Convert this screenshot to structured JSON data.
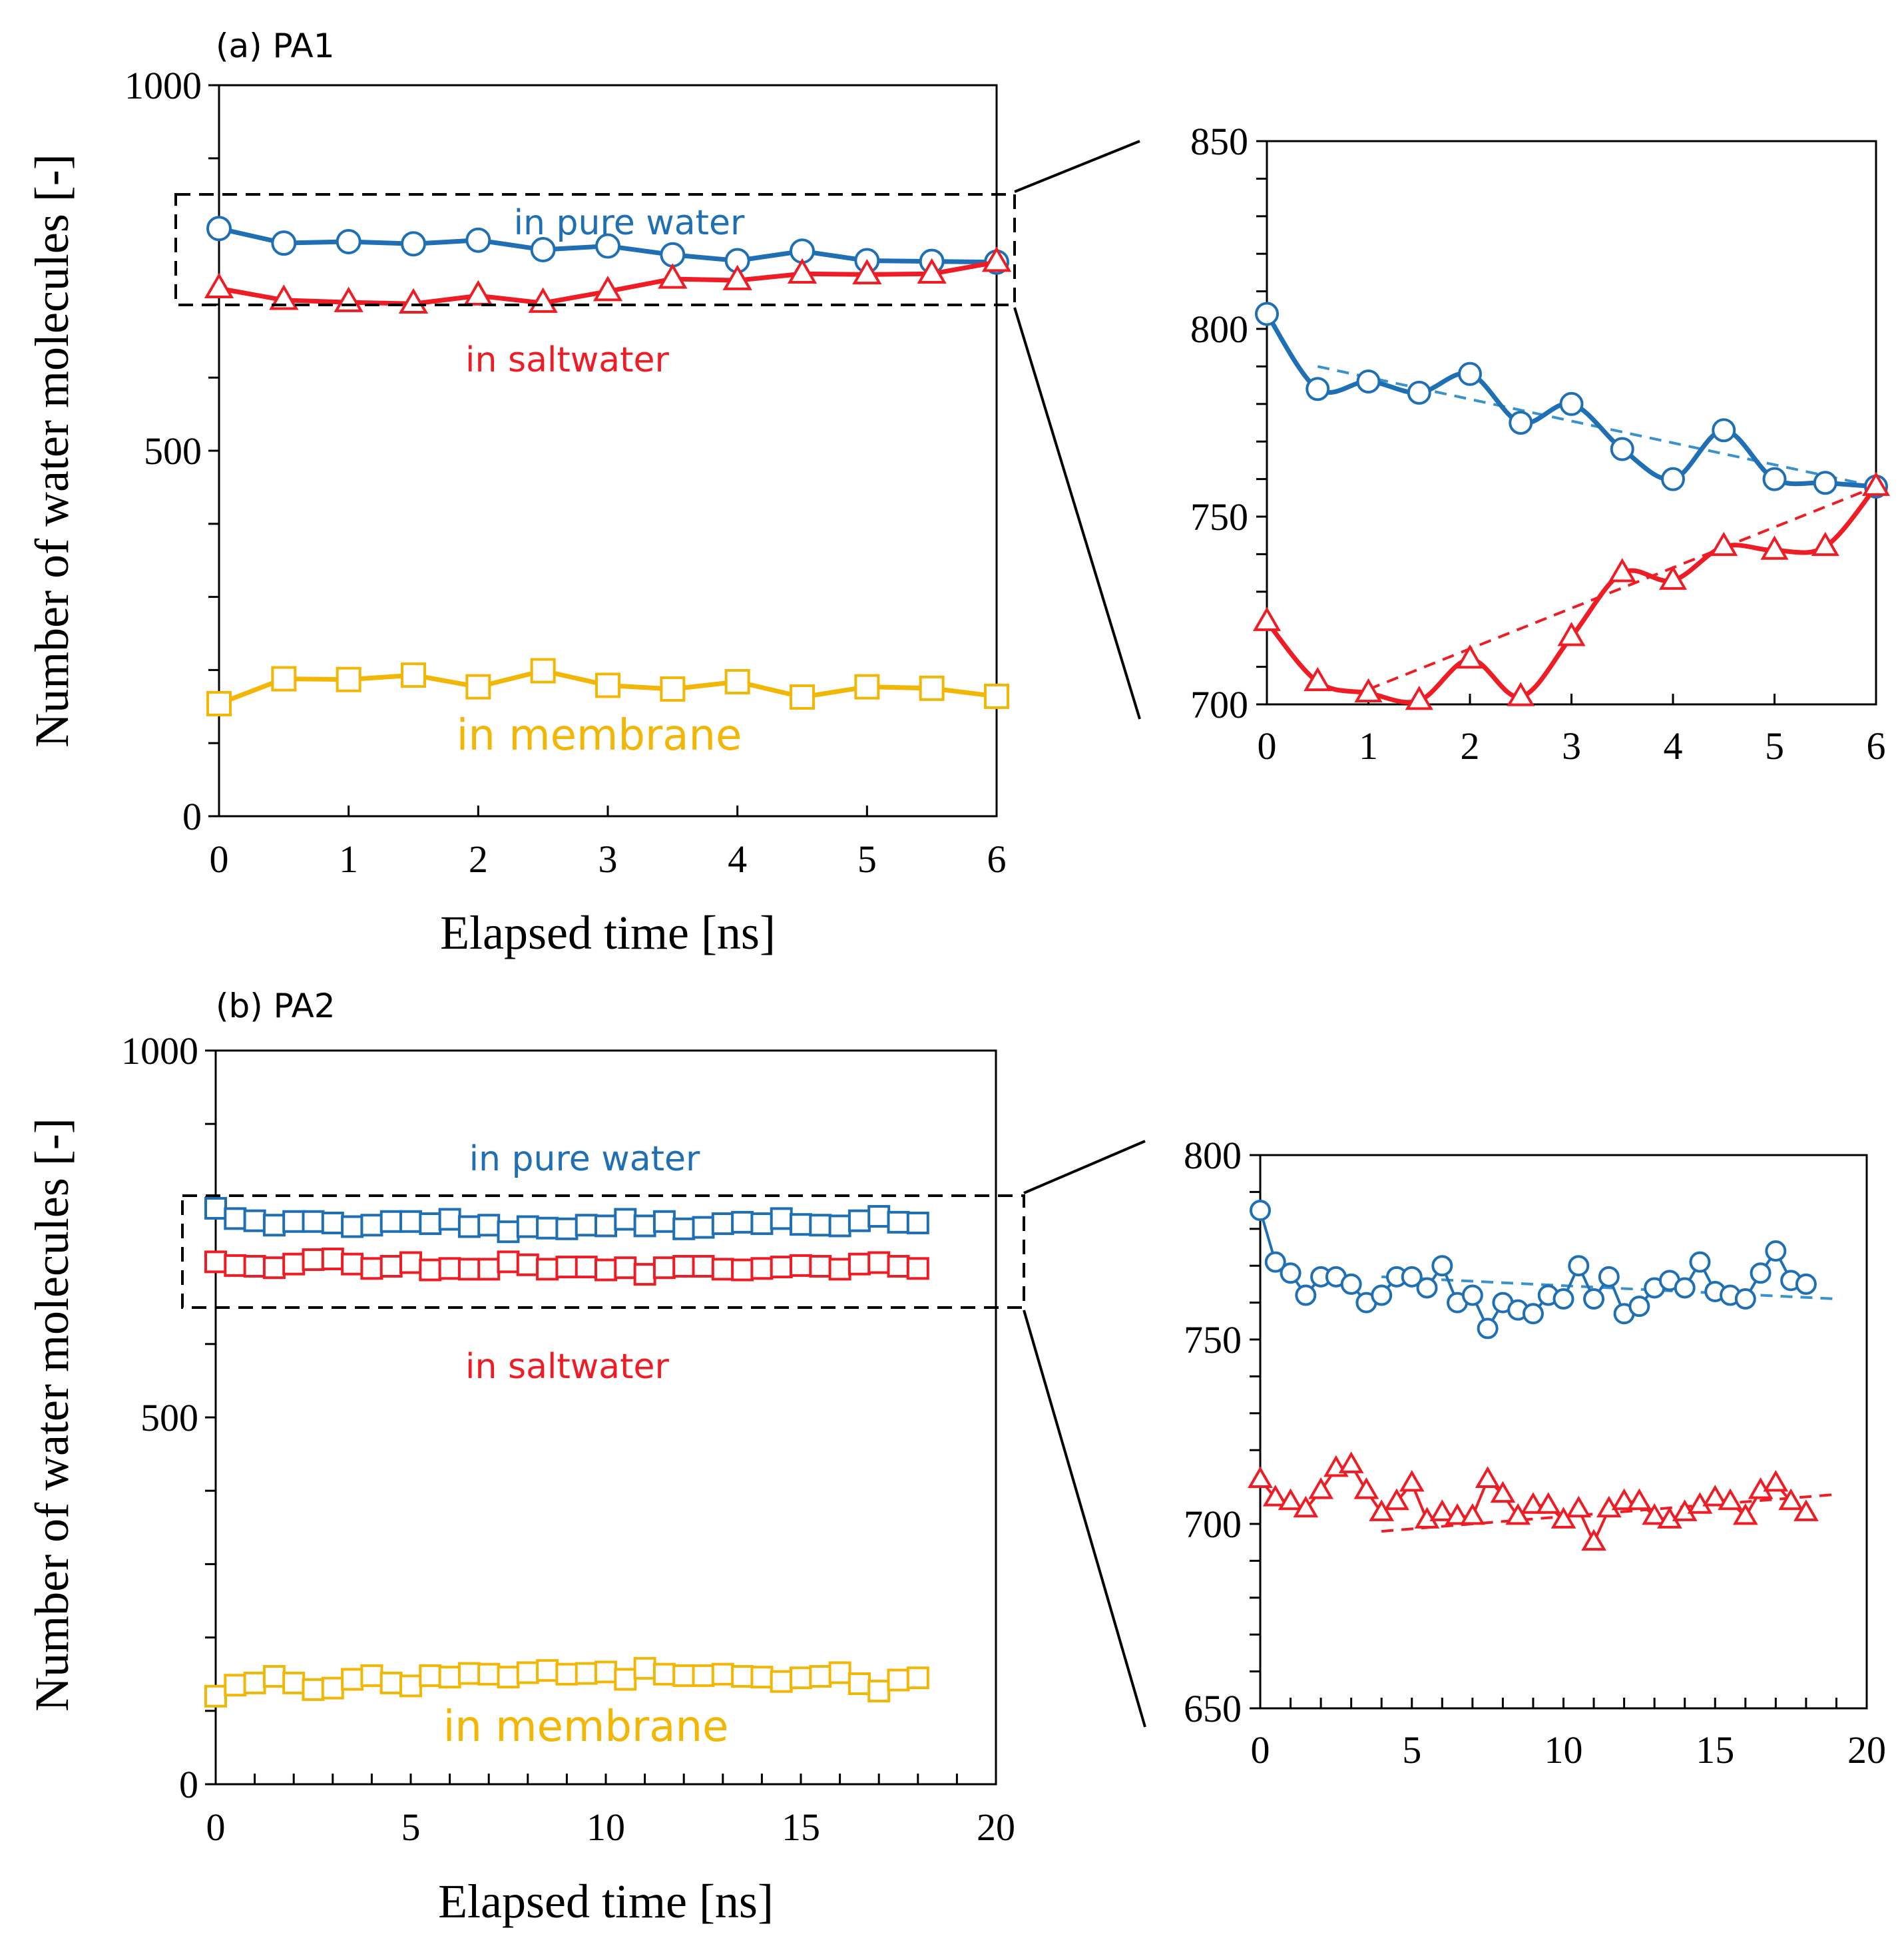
{
  "colors": {
    "pure_water": "#1f6fb4",
    "pure_water_trend": "#3a92cc",
    "saltwater": "#ee1c24",
    "membrane": "#f2b705",
    "axis": "#000000"
  },
  "chart_data": [
    {
      "id": "a_main",
      "type": "line",
      "panel_label": "(a) PA1",
      "xlabel": "Elapsed time [ns]",
      "ylabel": "Number of water molecules [-]",
      "xlim": [
        0,
        6
      ],
      "ylim": [
        0,
        1000
      ],
      "xticks": [
        0,
        1,
        2,
        3,
        4,
        5,
        6
      ],
      "yticks": [
        0,
        500,
        1000
      ],
      "annotations": {
        "pure": "in pure water",
        "salt": "in saltwater",
        "membrane": "in membrane"
      },
      "series": [
        {
          "name": "in pure water",
          "marker": "circle",
          "x": [
            0,
            0.5,
            1,
            1.5,
            2,
            2.5,
            3,
            3.5,
            4,
            4.5,
            5,
            5.5,
            6
          ],
          "values": [
            804,
            784,
            786,
            783,
            788,
            775,
            780,
            768,
            760,
            773,
            760,
            759,
            758
          ]
        },
        {
          "name": "in saltwater",
          "marker": "triangle",
          "x": [
            0,
            0.5,
            1,
            1.5,
            2,
            2.5,
            3,
            3.5,
            4,
            4.5,
            5,
            5.5,
            6
          ],
          "values": [
            722,
            706,
            703,
            701,
            712,
            702,
            718,
            735,
            733,
            742,
            741,
            742,
            758
          ]
        },
        {
          "name": "in membrane",
          "marker": "square",
          "x": [
            0,
            0.5,
            1,
            1.5,
            2,
            2.5,
            3,
            3.5,
            4,
            4.5,
            5,
            5.5,
            6
          ],
          "values": [
            154,
            188,
            187,
            193,
            177,
            199,
            179,
            174,
            184,
            163,
            177,
            175,
            164
          ]
        }
      ]
    },
    {
      "id": "a_zoom",
      "type": "line",
      "xlim": [
        0,
        6
      ],
      "ylim": [
        700,
        850
      ],
      "xticks": [
        0,
        1,
        2,
        3,
        4,
        5,
        6
      ],
      "yticks": [
        700,
        750,
        800,
        850
      ],
      "series": [
        {
          "name": "in pure water",
          "marker": "circle",
          "x": [
            0,
            0.5,
            1,
            1.5,
            2,
            2.5,
            3,
            3.5,
            4,
            4.5,
            5,
            5.5,
            6
          ],
          "values": [
            804,
            784,
            786,
            783,
            788,
            775,
            780,
            768,
            760,
            773,
            760,
            759,
            758
          ]
        },
        {
          "name": "in saltwater",
          "marker": "triangle",
          "x": [
            0,
            0.5,
            1,
            1.5,
            2,
            2.5,
            3,
            3.5,
            4,
            4.5,
            5,
            5.5,
            6
          ],
          "values": [
            722,
            706,
            703,
            701,
            712,
            702,
            718,
            735,
            733,
            742,
            741,
            742,
            758
          ]
        }
      ],
      "trendlines": [
        {
          "series": "in pure water",
          "x": [
            0.5,
            6
          ],
          "values": [
            790,
            758
          ]
        },
        {
          "series": "in saltwater",
          "x": [
            1,
            6
          ],
          "values": [
            704,
            758
          ]
        }
      ]
    },
    {
      "id": "b_main",
      "type": "line",
      "panel_label": "(b) PA2",
      "xlabel": "Elapsed time [ns]",
      "ylabel": "Number of water molecules [-]",
      "xlim": [
        0,
        20
      ],
      "ylim": [
        0,
        1000
      ],
      "xticks": [
        0,
        5,
        10,
        15,
        20
      ],
      "yticks": [
        0,
        500,
        1000
      ],
      "annotations": {
        "pure": "in pure water",
        "salt": "in saltwater",
        "membrane": "in membrane"
      },
      "series": [
        {
          "name": "in pure water",
          "marker": "square",
          "x": [
            0,
            0.5,
            1,
            1.5,
            2,
            2.5,
            3,
            3.5,
            4,
            4.5,
            5,
            5.5,
            6,
            6.5,
            7,
            7.5,
            8,
            8.5,
            9,
            9.5,
            10,
            10.5,
            11,
            11.5,
            12,
            12.5,
            13,
            13.5,
            14,
            14.5,
            15,
            15.5,
            16,
            16.5,
            17,
            17.5,
            18
          ],
          "values": [
            785,
            771,
            768,
            762,
            767,
            767,
            765,
            760,
            762,
            767,
            767,
            764,
            770,
            760,
            762,
            753,
            760,
            758,
            757,
            762,
            761,
            770,
            761,
            767,
            757,
            759,
            764,
            766,
            764,
            771,
            763,
            762,
            761,
            768,
            774,
            766,
            765
          ]
        },
        {
          "name": "in saltwater",
          "marker": "square",
          "x": [
            0,
            0.5,
            1,
            1.5,
            2,
            2.5,
            3,
            3.5,
            4,
            4.5,
            5,
            5.5,
            6,
            6.5,
            7,
            7.5,
            8,
            8.5,
            9,
            9.5,
            10,
            10.5,
            11,
            11.5,
            12,
            12.5,
            13,
            13.5,
            14,
            14.5,
            15,
            15.5,
            16,
            16.5,
            17,
            17.5,
            18
          ],
          "values": [
            712,
            707,
            706,
            704,
            709,
            715,
            716,
            709,
            703,
            706,
            711,
            701,
            703,
            702,
            702,
            712,
            708,
            702,
            705,
            705,
            701,
            704,
            695,
            704,
            706,
            706,
            702,
            701,
            703,
            705,
            707,
            706,
            702,
            709,
            711,
            706,
            703
          ]
        },
        {
          "name": "in membrane",
          "marker": "square",
          "x": [
            0,
            0.5,
            1,
            1.5,
            2,
            2.5,
            3,
            3.5,
            4,
            4.5,
            5,
            5.5,
            6,
            6.5,
            7,
            7.5,
            8,
            8.5,
            9,
            9.5,
            10,
            10.5,
            11,
            11.5,
            12,
            12.5,
            13,
            13.5,
            14,
            14.5,
            15,
            15.5,
            16,
            16.5,
            17,
            17.5,
            18
          ],
          "values": [
            120,
            135,
            138,
            147,
            138,
            129,
            131,
            143,
            148,
            138,
            134,
            148,
            146,
            151,
            150,
            146,
            152,
            155,
            150,
            151,
            153,
            143,
            158,
            150,
            148,
            148,
            150,
            147,
            146,
            140,
            145,
            147,
            152,
            137,
            127,
            142,
            145
          ]
        }
      ]
    },
    {
      "id": "b_zoom",
      "type": "line",
      "xlim": [
        0,
        20
      ],
      "ylim": [
        650,
        800
      ],
      "xticks": [
        0,
        5,
        10,
        15,
        20
      ],
      "yticks": [
        650,
        700,
        750,
        800
      ],
      "series": [
        {
          "name": "in pure water",
          "marker": "circle",
          "x": [
            0,
            0.5,
            1,
            1.5,
            2,
            2.5,
            3,
            3.5,
            4,
            4.5,
            5,
            5.5,
            6,
            6.5,
            7,
            7.5,
            8,
            8.5,
            9,
            9.5,
            10,
            10.5,
            11,
            11.5,
            12,
            12.5,
            13,
            13.5,
            14,
            14.5,
            15,
            15.5,
            16,
            16.5,
            17,
            17.5,
            18
          ],
          "values": [
            785,
            771,
            768,
            762,
            767,
            767,
            765,
            760,
            762,
            767,
            767,
            764,
            770,
            760,
            762,
            753,
            760,
            758,
            757,
            762,
            761,
            770,
            761,
            767,
            757,
            759,
            764,
            766,
            764,
            771,
            763,
            762,
            761,
            768,
            774,
            766,
            765
          ]
        },
        {
          "name": "in saltwater",
          "marker": "triangle",
          "x": [
            0,
            0.5,
            1,
            1.5,
            2,
            2.5,
            3,
            3.5,
            4,
            4.5,
            5,
            5.5,
            6,
            6.5,
            7,
            7.5,
            8,
            8.5,
            9,
            9.5,
            10,
            10.5,
            11,
            11.5,
            12,
            12.5,
            13,
            13.5,
            14,
            14.5,
            15,
            15.5,
            16,
            16.5,
            17,
            17.5,
            18
          ],
          "values": [
            712,
            707,
            706,
            704,
            709,
            715,
            716,
            709,
            703,
            706,
            711,
            701,
            703,
            702,
            702,
            712,
            708,
            702,
            705,
            705,
            701,
            704,
            695,
            704,
            706,
            706,
            702,
            701,
            703,
            705,
            707,
            706,
            702,
            709,
            711,
            706,
            703
          ]
        }
      ],
      "trendlines": [
        {
          "series": "in pure water",
          "x": [
            4,
            19
          ],
          "values": [
            767,
            761
          ]
        },
        {
          "series": "in saltwater",
          "x": [
            4,
            19
          ],
          "values": [
            698,
            708
          ]
        }
      ]
    }
  ]
}
